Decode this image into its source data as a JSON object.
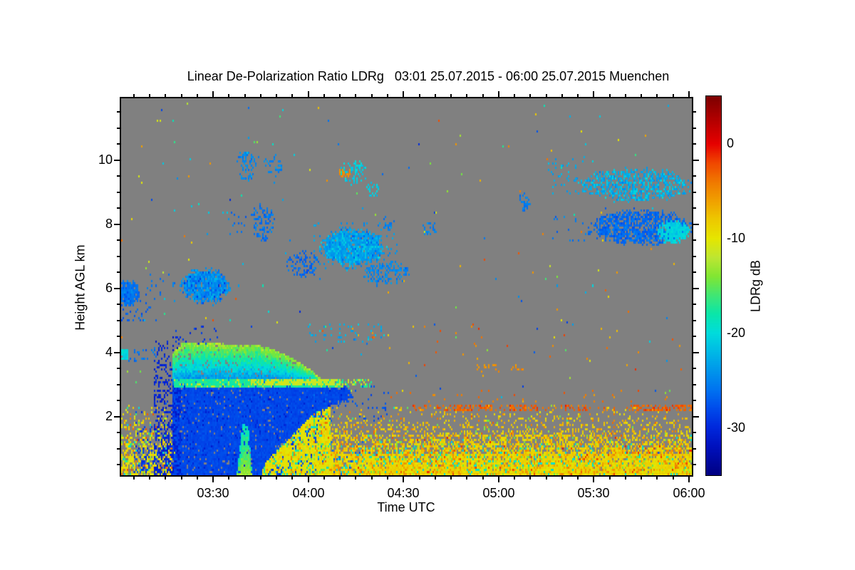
{
  "chart_data": {
    "type": "heatmap",
    "title": "Linear De-Polarization Ratio LDRg   03:01 25.07.2015 - 06:00 25.07.2015 Muenchen",
    "xlabel": "Time UTC",
    "ylabel": "Height AGL km",
    "x_range_labels": [
      "03:01",
      "06:00"
    ],
    "x_hours": [
      3.0167,
      6.015
    ],
    "x_ticks": [
      {
        "h": 3.5,
        "label": "03:30"
      },
      {
        "h": 4.0,
        "label": "04:00"
      },
      {
        "h": 4.5,
        "label": "04:30"
      },
      {
        "h": 5.0,
        "label": "05:00"
      },
      {
        "h": 5.5,
        "label": "05:30"
      },
      {
        "h": 6.0,
        "label": "06:00"
      }
    ],
    "x_minor_step_min": 5,
    "y_range": [
      0.175,
      11.93
    ],
    "y_ticks": [
      2,
      4,
      6,
      8,
      10
    ],
    "y_minor_step": 0.5,
    "background_color": "#808080",
    "grid": false,
    "colorbar": {
      "label": "LDRg dB",
      "range": [
        5,
        -35
      ],
      "ticks": [
        {
          "v": 0,
          "label": "0"
        },
        {
          "v": -10,
          "label": "-10"
        },
        {
          "v": -20,
          "label": "-20"
        },
        {
          "v": -30,
          "label": "-30"
        }
      ],
      "stops": [
        [
          5,
          "#7D0000"
        ],
        [
          2,
          "#BE0000"
        ],
        [
          0,
          "#E60000"
        ],
        [
          -2,
          "#F04600"
        ],
        [
          -4,
          "#F07800"
        ],
        [
          -6,
          "#F0A000"
        ],
        [
          -8,
          "#EDC800"
        ],
        [
          -10,
          "#E6E600"
        ],
        [
          -12,
          "#BEE632"
        ],
        [
          -14,
          "#82E632"
        ],
        [
          -16,
          "#41E673"
        ],
        [
          -18,
          "#0AE6AA"
        ],
        [
          -20,
          "#00DCDC"
        ],
        [
          -22,
          "#00B9E6"
        ],
        [
          -24,
          "#0096EB"
        ],
        [
          -26,
          "#0073F0"
        ],
        [
          -28,
          "#004BEB"
        ],
        [
          -30,
          "#0028DC"
        ],
        [
          -32,
          "#0011BE"
        ],
        [
          -35,
          "#000082"
        ]
      ]
    },
    "features": [
      {
        "name": "scattered-noise",
        "type": "speckle",
        "t": [
          3.02,
          6.01
        ],
        "h": [
          0.3,
          11.8
        ],
        "d": 0.003,
        "vr": [
          -30,
          -2
        ]
      },
      {
        "name": "left-low-aerosol",
        "type": "speckle",
        "t": [
          3.017,
          3.3
        ],
        "h": [
          0.18,
          2.35
        ],
        "d": [
          0.75,
          0.03
        ],
        "v": [
          -9.5,
          2.5
        ],
        "mix": [
          [
            0.12,
            -15,
            3
          ],
          [
            0.1,
            -3.5,
            2
          ],
          [
            0.05,
            -20,
            2
          ]
        ]
      },
      {
        "name": "aerosol-dense-layer",
        "type": "speckle",
        "t": [
          4.0,
          6.015
        ],
        "h": [
          0.18,
          0.78
        ],
        "d": [
          1.0,
          0.9
        ],
        "v": [
          -9,
          1.8
        ],
        "mix": [
          [
            0.15,
            -5.5,
            1.5
          ],
          [
            0.08,
            -14,
            2
          ],
          [
            0.06,
            -19.5,
            1.5
          ],
          [
            0.03,
            -2,
            1.5
          ]
        ]
      },
      {
        "name": "aerosol-mid-layer",
        "type": "speckle",
        "t": [
          4.0,
          6.015
        ],
        "h": [
          0.78,
          1.4
        ],
        "d": [
          0.82,
          0.4
        ],
        "v": [
          -8.5,
          2
        ],
        "mix": [
          [
            0.15,
            -5,
            1.5
          ],
          [
            0.07,
            -14,
            2
          ],
          [
            0.05,
            -19.5,
            1.5
          ],
          [
            0.03,
            -1.5,
            1.5
          ]
        ]
      },
      {
        "name": "aerosol-top-speckle",
        "type": "speckle",
        "t": [
          4.0,
          6.015
        ],
        "h": [
          1.4,
          2.35
        ],
        "d": [
          0.32,
          0.02
        ],
        "v": [
          -8,
          2.5
        ],
        "mix": [
          [
            0.12,
            -4,
            2
          ],
          [
            0.06,
            -14,
            2
          ]
        ]
      },
      {
        "name": "aerosol-cyan-wisps",
        "type": "speckle",
        "t": [
          4.25,
          5.5
        ],
        "h": [
          0.45,
          1.05
        ],
        "d": 0.05,
        "v": [
          -19.5,
          1.5
        ]
      },
      {
        "name": "rain-shaft",
        "type": "poly",
        "pts": [
          [
            3.285,
            0.18
          ],
          [
            3.285,
            2.98
          ],
          [
            4.2,
            2.98
          ],
          [
            4.24,
            2.62
          ],
          [
            4.12,
            2.35
          ],
          [
            4.06,
            2.0
          ],
          [
            4.04,
            1.2
          ],
          [
            4.01,
            0.18
          ]
        ],
        "d": 1,
        "v": [
          -28.2,
          1.0
        ],
        "mix": [
          [
            0.05,
            -30.5,
            1
          ]
        ]
      },
      {
        "name": "rain-left-edge-dark",
        "type": "speckle",
        "t": [
          3.19,
          3.33
        ],
        "h": [
          0.18,
          4.5
        ],
        "d": [
          0.55,
          0.12
        ],
        "v": [
          -30.5,
          1.5
        ]
      },
      {
        "name": "rain-left-outliers",
        "type": "speckle",
        "t": [
          3.09,
          3.21
        ],
        "h": [
          0.25,
          2.2
        ],
        "d": [
          0.22,
          0.04
        ],
        "v": [
          -29,
          2
        ]
      },
      {
        "name": "downdraft-cyan-streak",
        "type": "poly",
        "pts": [
          [
            3.625,
            0.18
          ],
          [
            3.64,
            1.0
          ],
          [
            3.655,
            1.8
          ],
          [
            3.685,
            1.8
          ],
          [
            3.697,
            0.9
          ],
          [
            3.707,
            0.18
          ]
        ],
        "d": 0.92,
        "grad": [
          -19.5,
          -13.5
        ],
        "vs": 2
      },
      {
        "name": "low-yellow-wedge",
        "type": "poly",
        "pts": [
          [
            3.75,
            0.18
          ],
          [
            3.78,
            0.6
          ],
          [
            3.92,
            1.45
          ],
          [
            4.03,
            2.1
          ],
          [
            4.12,
            2.35
          ],
          [
            4.12,
            0.18
          ]
        ],
        "d": 0.88,
        "v": [
          -9.5,
          2.2
        ],
        "mix": [
          [
            0.1,
            -15.5,
            2.5
          ],
          [
            0.05,
            -20,
            1.5
          ],
          [
            0.05,
            -4.5,
            1.5
          ]
        ]
      },
      {
        "name": "cloud-top-canopy",
        "type": "poly",
        "pts": [
          [
            3.285,
            2.98
          ],
          [
            3.285,
            3.9
          ],
          [
            3.3,
            4.05
          ],
          [
            3.34,
            4.32
          ],
          [
            3.42,
            4.28
          ],
          [
            3.5,
            4.33
          ],
          [
            3.6,
            4.25
          ],
          [
            3.7,
            4.28
          ],
          [
            3.78,
            4.18
          ],
          [
            3.88,
            3.95
          ],
          [
            3.95,
            3.72
          ],
          [
            4.02,
            3.45
          ],
          [
            4.07,
            3.18
          ],
          [
            4.08,
            2.98
          ]
        ],
        "d": 0.97,
        "grad": [
          -13.5,
          -25.5
        ],
        "vs": 2.5
      },
      {
        "name": "melting-layer-bright-band",
        "type": "hline",
        "segs": [
          [
            3.3,
            4.18,
            0.95
          ],
          [
            4.18,
            4.35,
            0.3
          ]
        ],
        "h": 3.06,
        "th": 0.22,
        "v": [
          -17.5,
          1.5
        ],
        "mix": [
          [
            0.15,
            -12,
            1.5
          ]
        ]
      },
      {
        "name": "bright-band-yellow-core",
        "type": "hline",
        "segs": [
          [
            3.7,
            4.17,
            0.75
          ],
          [
            4.17,
            4.32,
            0.25
          ]
        ],
        "h": 3.07,
        "th": 0.09,
        "v": [
          -11.5,
          1
        ]
      },
      {
        "name": "rain-edge-wisps",
        "type": "speckle",
        "t": [
          4.02,
          4.42
        ],
        "h": [
          1.9,
          2.95
        ],
        "d": 0.07,
        "v": [
          -27.5,
          1.5
        ]
      },
      {
        "name": "blue-specks-in-aerosol",
        "type": "speckle",
        "t": [
          4.02,
          4.35
        ],
        "h": [
          0.2,
          1.2
        ],
        "d": 0.035,
        "v": [
          -27,
          2
        ]
      },
      {
        "name": "above-canopy-specks",
        "type": "speckle",
        "t": [
          3.3,
          3.52
        ],
        "h": [
          4.25,
          4.85
        ],
        "d": 0.1,
        "v": [
          -29,
          2
        ]
      },
      {
        "name": "cloud-6km-left-edge",
        "type": "cloud",
        "t": [
          2.99,
          3.12
        ],
        "h": [
          5.45,
          6.3
        ],
        "d": 0.95,
        "v": [
          -26,
          1.8
        ]
      },
      {
        "name": "cloud-6km-left-tail",
        "type": "speckle",
        "t": [
          3.017,
          3.2
        ],
        "h": [
          5.05,
          5.85
        ],
        "d": 0.09,
        "v": [
          -27,
          2
        ]
      },
      {
        "name": "specks-6km",
        "type": "speckle",
        "t": [
          3.1,
          3.35
        ],
        "h": [
          5.7,
          6.4
        ],
        "d": 0.05,
        "v": [
          -26,
          2
        ]
      },
      {
        "name": "cloud-6km-second",
        "type": "cloud",
        "t": [
          3.32,
          3.6
        ],
        "h": [
          5.5,
          6.65
        ],
        "d": 0.95,
        "v": [
          -25,
          2
        ],
        "mix": [
          [
            0.2,
            -23,
            1
          ],
          [
            0.08,
            -28.5,
            1.5
          ]
        ]
      },
      {
        "name": "left-edge-cyan-dash-4km",
        "type": "hline",
        "segs": [
          [
            3.017,
            3.05,
            0.9
          ]
        ],
        "h": 3.95,
        "th": 0.25,
        "v": [
          -20,
          1.5
        ]
      },
      {
        "name": "left-edge-blue-specks-4km",
        "type": "speckle",
        "t": [
          3.05,
          3.2
        ],
        "h": [
          3.75,
          4.15
        ],
        "d": 0.1,
        "v": [
          -26,
          2
        ]
      },
      {
        "name": "cirrus-streak-10km-a",
        "type": "cloud",
        "t": [
          3.615,
          3.75
        ],
        "h": [
          9.3,
          10.35
        ],
        "d": 0.3,
        "v": [
          -25,
          2
        ]
      },
      {
        "name": "cirrus-streak-10km-b",
        "type": "cloud",
        "t": [
          3.76,
          3.87
        ],
        "h": [
          9.45,
          10.2
        ],
        "d": 0.26,
        "v": [
          -25,
          2
        ]
      },
      {
        "name": "cloud-8km",
        "type": "cloud",
        "t": [
          3.69,
          3.83
        ],
        "h": [
          7.45,
          8.65
        ],
        "d": 0.5,
        "v": [
          -26,
          2
        ]
      },
      {
        "name": "specks-8km",
        "type": "speckle",
        "t": [
          3.58,
          3.68
        ],
        "h": [
          7.7,
          8.35
        ],
        "d": 0.08,
        "v": [
          -26,
          2
        ]
      },
      {
        "name": "cloud-7km-wisps",
        "type": "cloud",
        "t": [
          3.87,
          4.07
        ],
        "h": [
          6.25,
          7.25
        ],
        "d": 0.33,
        "v": [
          -26.5,
          1.8
        ]
      },
      {
        "name": "cloud-7km-main",
        "type": "cloud",
        "t": [
          4.05,
          4.42
        ],
        "h": [
          6.65,
          7.9
        ],
        "d": 0.96,
        "v": [
          -23.5,
          1.8
        ],
        "mix": [
          [
            0.15,
            -21,
            1
          ],
          [
            0.1,
            -26.5,
            1
          ]
        ]
      },
      {
        "name": "cloud-7km-halo",
        "type": "speckle",
        "t": [
          4.03,
          4.48
        ],
        "h": [
          6.5,
          8.05
        ],
        "d": 0.07,
        "v": [
          -24,
          2
        ]
      },
      {
        "name": "cloud-7km-tail",
        "type": "cloud",
        "t": [
          4.28,
          4.55
        ],
        "h": [
          6.05,
          6.9
        ],
        "d": 0.4,
        "v": [
          -25,
          2
        ]
      },
      {
        "name": "cirrus-9-6km",
        "type": "cloud",
        "t": [
          4.16,
          4.32
        ],
        "h": [
          9.2,
          10.05
        ],
        "d": 0.38,
        "v": [
          -21,
          2
        ]
      },
      {
        "name": "cirrus-dot-9km",
        "type": "cloud",
        "t": [
          4.3,
          4.38
        ],
        "h": [
          8.8,
          9.3
        ],
        "d": 0.42,
        "v": [
          -21,
          1.5
        ]
      },
      {
        "name": "blue-dots-8km",
        "type": "cloud",
        "t": [
          4.38,
          4.46
        ],
        "h": [
          7.75,
          8.3
        ],
        "d": 0.32,
        "v": [
          -25.5,
          1.5
        ]
      },
      {
        "name": "patch-8km-0440",
        "type": "cloud",
        "t": [
          4.59,
          4.69
        ],
        "h": [
          7.6,
          8.1
        ],
        "d": 0.3,
        "v": [
          -25,
          1.5
        ]
      },
      {
        "name": "dot-8-5km-0507",
        "type": "cloud",
        "t": [
          5.09,
          5.17
        ],
        "h": [
          8.35,
          9.0
        ],
        "d": 0.4,
        "v": [
          -25.5,
          1.5
        ]
      },
      {
        "name": "band-9km-right",
        "type": "cloud",
        "t": [
          5.4,
          6.04
        ],
        "h": [
          8.65,
          9.8
        ],
        "d": 0.55,
        "v": [
          -23,
          2.2
        ],
        "mix": [
          [
            0.2,
            -20.5,
            1
          ]
        ]
      },
      {
        "name": "band-9km-lead-specks",
        "type": "speckle",
        "t": [
          5.26,
          5.45
        ],
        "h": [
          8.9,
          10.1
        ],
        "d": 0.07,
        "v": [
          -23,
          2
        ]
      },
      {
        "name": "band-8km-right",
        "type": "cloud",
        "t": [
          5.45,
          6.04
        ],
        "h": [
          7.3,
          8.5
        ],
        "d": 0.72,
        "v": [
          -26.5,
          1.8
        ]
      },
      {
        "name": "band-8km-bright-core",
        "type": "cloud",
        "t": [
          5.82,
          6.01
        ],
        "h": [
          7.35,
          8.15
        ],
        "d": 0.85,
        "v": [
          -20.5,
          1.5
        ]
      },
      {
        "name": "band-8km-lead-specks",
        "type": "speckle",
        "t": [
          5.28,
          5.47
        ],
        "h": [
          7.5,
          8.2
        ],
        "d": 0.06,
        "v": [
          -26,
          2
        ]
      },
      {
        "name": "specks-4-6km-line",
        "type": "speckle",
        "t": [
          4.0,
          4.4
        ],
        "h": [
          4.35,
          4.9
        ],
        "d": 0.12,
        "v": [
          -23,
          3
        ],
        "mix": [
          [
            0.07,
            -3,
            2
          ],
          [
            0.07,
            -6,
            1.5
          ]
        ]
      },
      {
        "name": "red-streak-2-3km",
        "type": "hline",
        "segs": [
          [
            4.55,
            4.72,
            0.18
          ],
          [
            4.72,
            4.96,
            0.6
          ],
          [
            4.96,
            5.06,
            0.22
          ],
          [
            5.06,
            5.2,
            0.5
          ],
          [
            5.2,
            5.35,
            0.12
          ],
          [
            5.35,
            5.46,
            0.4
          ],
          [
            5.46,
            5.7,
            0.1
          ],
          [
            5.7,
            5.86,
            0.5
          ],
          [
            5.86,
            6.015,
            0.6
          ]
        ],
        "h": 2.3,
        "th": 0.14,
        "v": [
          -3,
          2.2
        ]
      },
      {
        "name": "red-dots-2-6km",
        "type": "speckle",
        "t": [
          4.35,
          6.0
        ],
        "h": [
          2.45,
          2.8
        ],
        "d": 0.02,
        "v": [
          -4,
          2.5
        ]
      },
      {
        "name": "orange-dashes-3-5km",
        "type": "hline",
        "segs": [
          [
            4.88,
            5.14,
            0.18
          ],
          [
            5.3,
            5.45,
            0.07
          ]
        ],
        "h": 3.55,
        "th": 0.12,
        "v": [
          -5,
          1.5
        ]
      },
      {
        "name": "sparse-red-dots-mid",
        "type": "speckle",
        "t": [
          4.5,
          6.0
        ],
        "h": [
          3.3,
          4.8
        ],
        "d": 0.006,
        "vr": [
          -7,
          -1
        ]
      },
      {
        "name": "orange-dot-9-6km",
        "type": "speckle",
        "t": [
          4.17,
          4.22
        ],
        "h": [
          9.5,
          9.7
        ],
        "d": 0.5,
        "v": [
          -5,
          1
        ]
      }
    ]
  }
}
